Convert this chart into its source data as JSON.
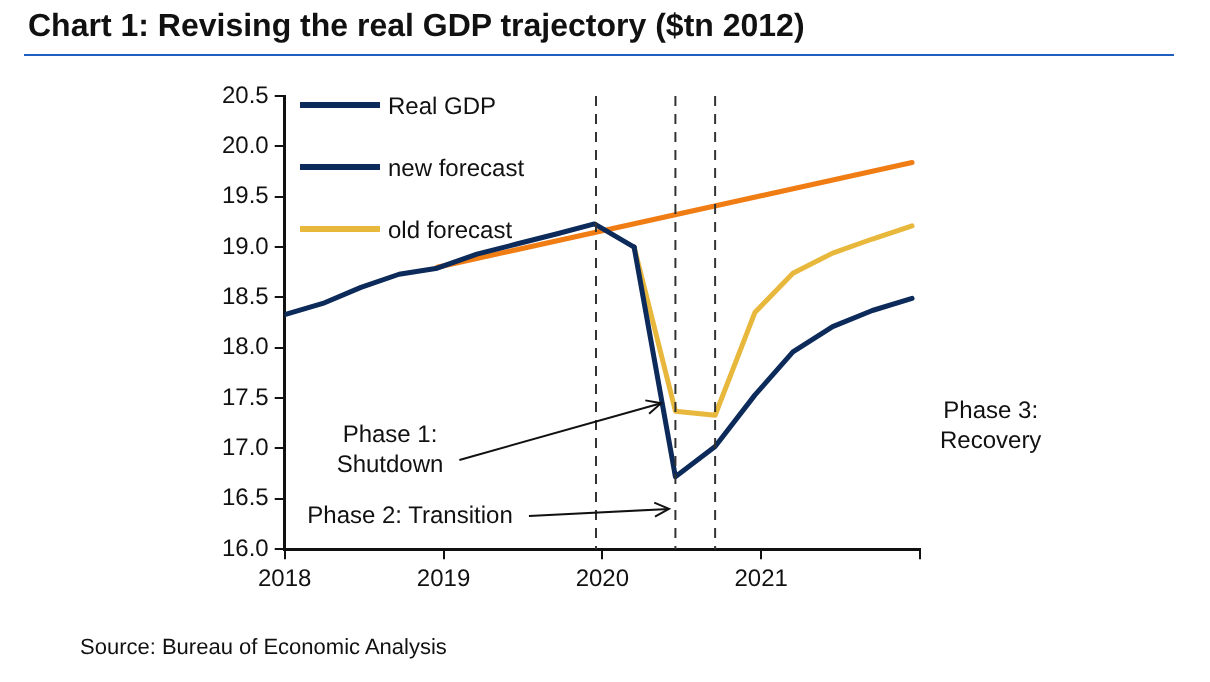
{
  "chart_data": {
    "type": "line",
    "title": "Chart 1: Revising the real GDP trajectory ($tn 2012)",
    "xlim": [
      2018,
      2022
    ],
    "xticks": [
      2018,
      2019,
      2020,
      2021,
      {
        "value": 2022,
        "label": null
      }
    ],
    "ylim": [
      16,
      20.5
    ],
    "yticks": [
      {
        "value": 16,
        "label": "16.0"
      },
      {
        "value": 16.5,
        "label": "16.5"
      },
      {
        "value": 17,
        "label": "17.0"
      },
      {
        "value": 17.5,
        "label": "17.5"
      },
      {
        "value": 18,
        "label": "18.0"
      },
      {
        "value": 18.5,
        "label": "18.5"
      },
      {
        "value": 19,
        "label": "19.0"
      },
      {
        "value": 19.5,
        "label": "19.5"
      },
      {
        "value": 20,
        "label": "20.0"
      },
      {
        "value": 20.5,
        "label": "20.5"
      }
    ],
    "grid": false,
    "legend": "top left",
    "marker": "none",
    "line_style": "solid",
    "series": [
      {
        "name": "Real GDP",
        "color": "#0c2a5a",
        "x": [
          2018,
          2018.24,
          2018.48,
          2018.72,
          2018.96,
          2019.21,
          2019.46,
          2019.71,
          2019.95,
          2020.2
        ],
        "values": [
          18.33,
          18.44,
          18.6,
          18.73,
          18.79,
          18.93,
          19.03,
          19.13,
          19.23,
          19.0
        ]
      },
      {
        "name": "new forecast",
        "color": "#0c2a5a",
        "x": [
          2020.2,
          2020.46,
          2020.71,
          2020.96,
          2021.2,
          2021.45,
          2021.7,
          2021.95
        ],
        "values": [
          19.0,
          16.72,
          17.02,
          17.53,
          17.96,
          18.21,
          18.37,
          18.49
        ]
      },
      {
        "name": "old forecast",
        "color": "#e8b83c",
        "x": [
          2020.2,
          2020.46,
          2020.71,
          2020.96,
          2021.2,
          2021.45,
          2021.7,
          2021.95
        ],
        "values": [
          19.0,
          17.37,
          17.33,
          18.35,
          18.74,
          18.94,
          19.08,
          19.21
        ]
      },
      {
        "color": "#f07c14",
        "x": [
          2018.96,
          2021.95
        ],
        "values": [
          18.8,
          19.84
        ]
      }
    ],
    "ref_lines": [
      {
        "axis": "x",
        "value": 2019.96,
        "line_style": "dashed",
        "color": "#333333"
      },
      {
        "axis": "x",
        "value": 2020.46,
        "line_style": "dashed",
        "color": "#333333"
      },
      {
        "axis": "x",
        "value": 2020.71,
        "line_style": "dashed",
        "color": "#333333"
      }
    ],
    "annotations": [
      {
        "text": "Phase 1:\nShutdown",
        "x": 2020.42,
        "y": 17.45
      },
      {
        "text": "Phase 2: Transition",
        "x": 2020.47,
        "y": 16.4
      },
      "Phase 3:\nRecovery",
      "Source: Bureau of Economic Analysis"
    ]
  }
}
